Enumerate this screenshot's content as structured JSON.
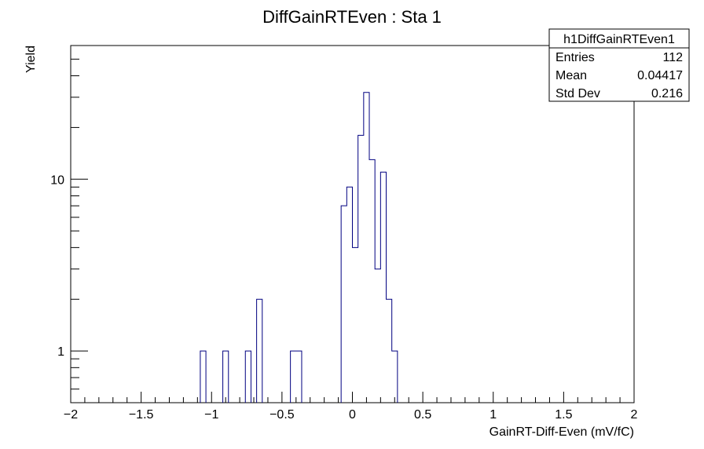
{
  "chart_data": {
    "type": "bar",
    "title": "DiffGainRTEven : Sta 1",
    "xlabel": "GainRT-Diff-Even (mV/fC)",
    "ylabel": "Yield",
    "xlim": [
      -2,
      2
    ],
    "ylim": [
      0.5,
      60
    ],
    "yscale": "log",
    "x_tick_labels": [
      "−2",
      "−1.5",
      "−1",
      "−0.5",
      "0",
      "0.5",
      "1",
      "1.5",
      "2"
    ],
    "x_ticks": [
      -2,
      -1.5,
      -1,
      -0.5,
      0,
      0.5,
      1,
      1.5,
      2
    ],
    "y_tick_labels": [
      "1",
      "10"
    ],
    "y_ticks": [
      1,
      10
    ],
    "bin_width": 0.04,
    "bins": [
      {
        "x0": -1.08,
        "x1": -1.04,
        "count": 1
      },
      {
        "x0": -0.92,
        "x1": -0.88,
        "count": 1
      },
      {
        "x0": -0.76,
        "x1": -0.72,
        "count": 1
      },
      {
        "x0": -0.68,
        "x1": -0.64,
        "count": 2
      },
      {
        "x0": -0.44,
        "x1": -0.4,
        "count": 1
      },
      {
        "x0": -0.4,
        "x1": -0.36,
        "count": 1
      },
      {
        "x0": -0.08,
        "x1": -0.04,
        "count": 7
      },
      {
        "x0": -0.04,
        "x1": 0.0,
        "count": 9
      },
      {
        "x0": 0.0,
        "x1": 0.04,
        "count": 4
      },
      {
        "x0": 0.04,
        "x1": 0.08,
        "count": 18
      },
      {
        "x0": 0.08,
        "x1": 0.12,
        "count": 32
      },
      {
        "x0": 0.12,
        "x1": 0.16,
        "count": 13
      },
      {
        "x0": 0.16,
        "x1": 0.2,
        "count": 3
      },
      {
        "x0": 0.2,
        "x1": 0.24,
        "count": 11
      },
      {
        "x0": 0.24,
        "x1": 0.28,
        "count": 2
      },
      {
        "x0": 0.28,
        "x1": 0.32,
        "count": 1
      }
    ],
    "line_color": "#000080",
    "stats_box": {
      "name": "h1DiffGainRTEven1",
      "rows": [
        {
          "label": "Entries",
          "value": "112"
        },
        {
          "label": "Mean",
          "value": "0.04417"
        },
        {
          "label": "Std Dev",
          "value": "0.216"
        }
      ]
    }
  }
}
